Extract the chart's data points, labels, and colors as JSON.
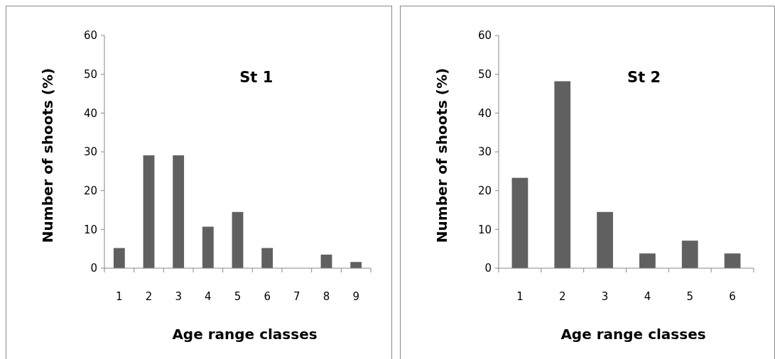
{
  "chart_data": [
    {
      "type": "bar",
      "title": "St 1",
      "xlabel": "Age range classes",
      "ylabel": "Number of shoots (%)",
      "categories": [
        "1",
        "2",
        "3",
        "4",
        "5",
        "6",
        "7",
        "8",
        "9"
      ],
      "values": [
        5.2,
        29.1,
        29.1,
        10.7,
        14.5,
        5.2,
        0,
        3.5,
        1.6
      ],
      "color": "#606060",
      "ylim": [
        0,
        60
      ],
      "yticks": [
        0,
        10,
        20,
        30,
        40,
        50,
        60
      ],
      "grid": false
    },
    {
      "type": "bar",
      "title": "St 2",
      "xlabel": "Age range classes",
      "ylabel": "Number of shoots (%)",
      "categories": [
        "1",
        "2",
        "3",
        "4",
        "5",
        "6"
      ],
      "values": [
        23.3,
        48.2,
        14.5,
        3.8,
        7.1,
        3.8
      ],
      "color": "#606060",
      "ylim": [
        0,
        60
      ],
      "yticks": [
        0,
        10,
        20,
        30,
        40,
        50,
        60
      ],
      "grid": false
    }
  ]
}
